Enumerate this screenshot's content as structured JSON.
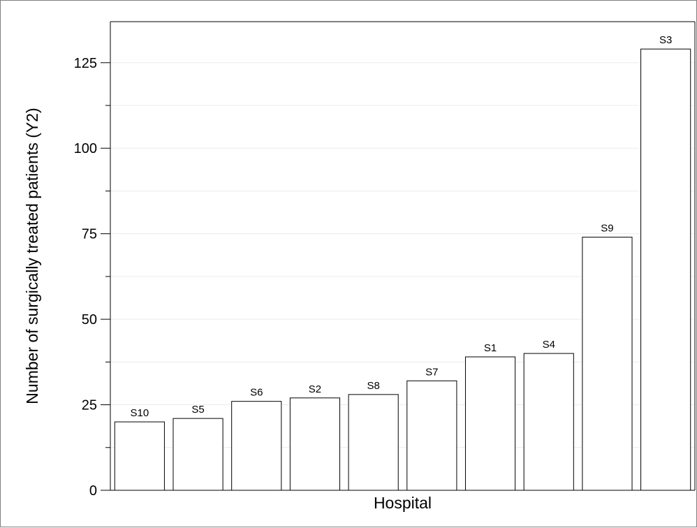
{
  "chart_data": {
    "type": "bar",
    "title": "",
    "xlabel": "Hospital",
    "ylabel": "Number of surgically treated patients (Y2)",
    "categories": [
      "S10",
      "S5",
      "S6",
      "S2",
      "S8",
      "S7",
      "S1",
      "S4",
      "S9",
      "S3"
    ],
    "values": [
      20,
      21,
      26,
      27,
      28,
      32,
      39,
      40,
      74,
      129
    ],
    "data_labels": [
      "S10",
      "S5",
      "S6",
      "S2",
      "S8",
      "S7",
      "S1",
      "S4",
      "S9",
      "S3"
    ],
    "ylim": [
      0,
      137
    ],
    "yticks": [
      0,
      25,
      50,
      75,
      100,
      125
    ],
    "ytick_labels": [
      "0",
      "25",
      "50",
      "75",
      "100",
      "125"
    ],
    "minor_yticks": [
      12.5,
      37.5,
      62.5,
      87.5,
      112.5
    ],
    "grid": true,
    "legend": "none",
    "bar_fill": "#ffffff",
    "bar_stroke": "#000000",
    "grid_color": "#ececec"
  }
}
